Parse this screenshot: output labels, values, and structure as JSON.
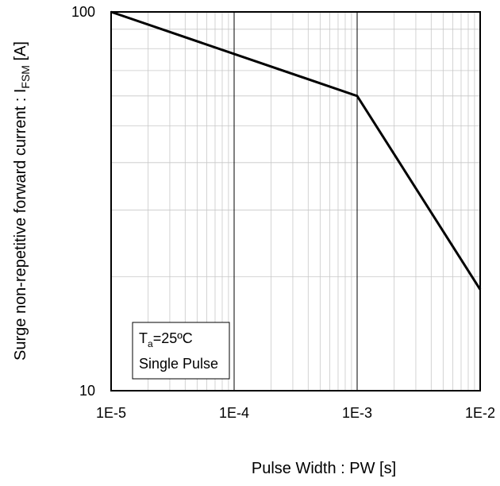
{
  "chart_data": {
    "type": "line",
    "xscale": "log",
    "yscale": "log",
    "xlim": [
      1e-05,
      0.01
    ],
    "ylim": [
      10,
      100
    ],
    "x_tick_labels": [
      "1E-5",
      "1E-4",
      "1E-3",
      "1E-2"
    ],
    "y_tick_labels": [
      "10",
      "100"
    ],
    "xlabel": "Pulse Width : PW [s]",
    "ylabel_main": "Surge non-repetitive forward current : I",
    "ylabel_sub": "FSM",
    "ylabel_unit": " [A]",
    "grid": true,
    "series": [
      {
        "x": [
          1e-05,
          0.001,
          0.01
        ],
        "y": [
          100,
          60,
          18.5
        ]
      }
    ],
    "annotation": {
      "line1_main": "T",
      "line1_sub": "a",
      "line1_rest": "=25ºC",
      "line2": "Single Pulse"
    }
  }
}
